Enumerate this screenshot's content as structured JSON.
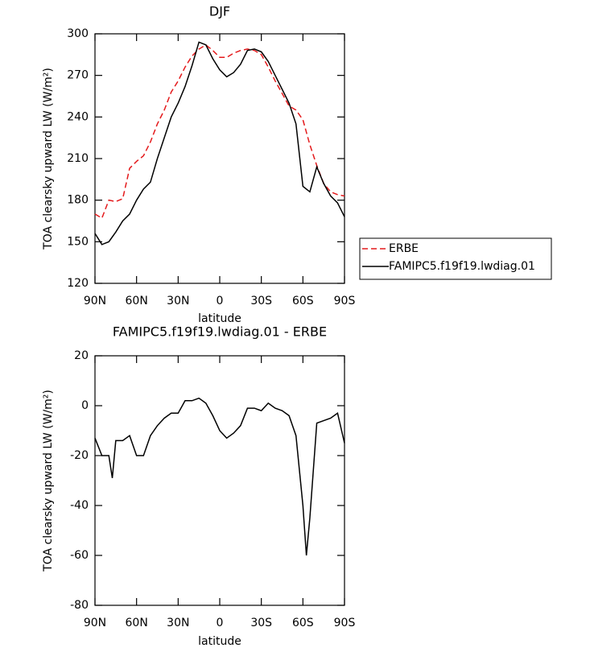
{
  "chart_data": [
    {
      "type": "line",
      "title": "DJF",
      "x_label": "latitude",
      "y_label": "TOA clearsky upward LW (W/m²)",
      "x": [
        90,
        85,
        80,
        75,
        70,
        65,
        60,
        55,
        50,
        45,
        40,
        35,
        30,
        25,
        20,
        15,
        10,
        5,
        0,
        -5,
        -10,
        -15,
        -20,
        -25,
        -30,
        -35,
        -40,
        -45,
        -50,
        -55,
        -60,
        -65,
        -70,
        -75,
        -80,
        -85,
        -90
      ],
      "series": [
        {
          "name": "ERBE",
          "color": "#e41a1c",
          "dash": true,
          "values": [
            170,
            167,
            180,
            179,
            181,
            203,
            208,
            212,
            222,
            235,
            245,
            258,
            266,
            276,
            284,
            289,
            292,
            288,
            283,
            283,
            286,
            288,
            289,
            288,
            285,
            276,
            266,
            257,
            248,
            245,
            238,
            220,
            205,
            192,
            186,
            184,
            183
          ]
        },
        {
          "name": "FAMIPC5.f19f19.lwdiag.01",
          "color": "#000000",
          "dash": false,
          "values": [
            156,
            148,
            150,
            157,
            165,
            170,
            180,
            188,
            193,
            210,
            225,
            240,
            250,
            262,
            277,
            294,
            292,
            282,
            274,
            269,
            272,
            278,
            288,
            289,
            287,
            280,
            270,
            260,
            250,
            235,
            190,
            186,
            204,
            192,
            183,
            178,
            168
          ]
        }
      ],
      "xlim": [
        90,
        -90
      ],
      "xticks": [
        {
          "value": 90,
          "label": "90N"
        },
        {
          "value": 60,
          "label": "60N"
        },
        {
          "value": 30,
          "label": "30N"
        },
        0,
        {
          "value": -30,
          "label": "30S"
        },
        {
          "value": -60,
          "label": "60S"
        },
        {
          "value": -90,
          "label": "90S"
        }
      ],
      "ylim": [
        120,
        300
      ],
      "yticks": [
        120,
        150,
        180,
        210,
        240,
        270,
        300
      ],
      "legend": "right"
    },
    {
      "type": "line",
      "title": "FAMIPC5.f19f19.lwdiag.01 - ERBE",
      "x_label": "latitude",
      "y_label": "TOA clearsky upward LW (W/m²)",
      "x": [
        90,
        85,
        80,
        77.5,
        75,
        70,
        65,
        60,
        55,
        50,
        45,
        40,
        35,
        30,
        25,
        20,
        15,
        10,
        5,
        0,
        -5,
        -10,
        -15,
        -20,
        -25,
        -30,
        -35,
        -40,
        -45,
        -50,
        -55,
        -60,
        -62.5,
        -65,
        -70,
        -75,
        -80,
        -85,
        -90
      ],
      "values": [
        -13,
        -20,
        -20,
        -29,
        -14,
        -14,
        -12,
        -20,
        -20,
        -12,
        -8,
        -5,
        -3,
        -3,
        2,
        2,
        3,
        1,
        -4,
        -10,
        -13,
        -11,
        -8,
        -1,
        -1,
        -2,
        1,
        -1,
        -2,
        -4,
        -12,
        -40,
        -60,
        -45,
        -7,
        -6,
        -5,
        -3,
        -15
      ],
      "color": "#000000",
      "xlim": [
        90,
        -90
      ],
      "xticks": [
        {
          "value": 90,
          "label": "90N"
        },
        {
          "value": 60,
          "label": "60N"
        },
        {
          "value": 30,
          "label": "30N"
        },
        0,
        {
          "value": -30,
          "label": "30S"
        },
        {
          "value": -60,
          "label": "60S"
        },
        {
          "value": -90,
          "label": "90S"
        }
      ],
      "ylim": [
        -80,
        20
      ],
      "yticks": [
        -80,
        -60,
        -40,
        -20,
        0,
        20
      ]
    }
  ]
}
